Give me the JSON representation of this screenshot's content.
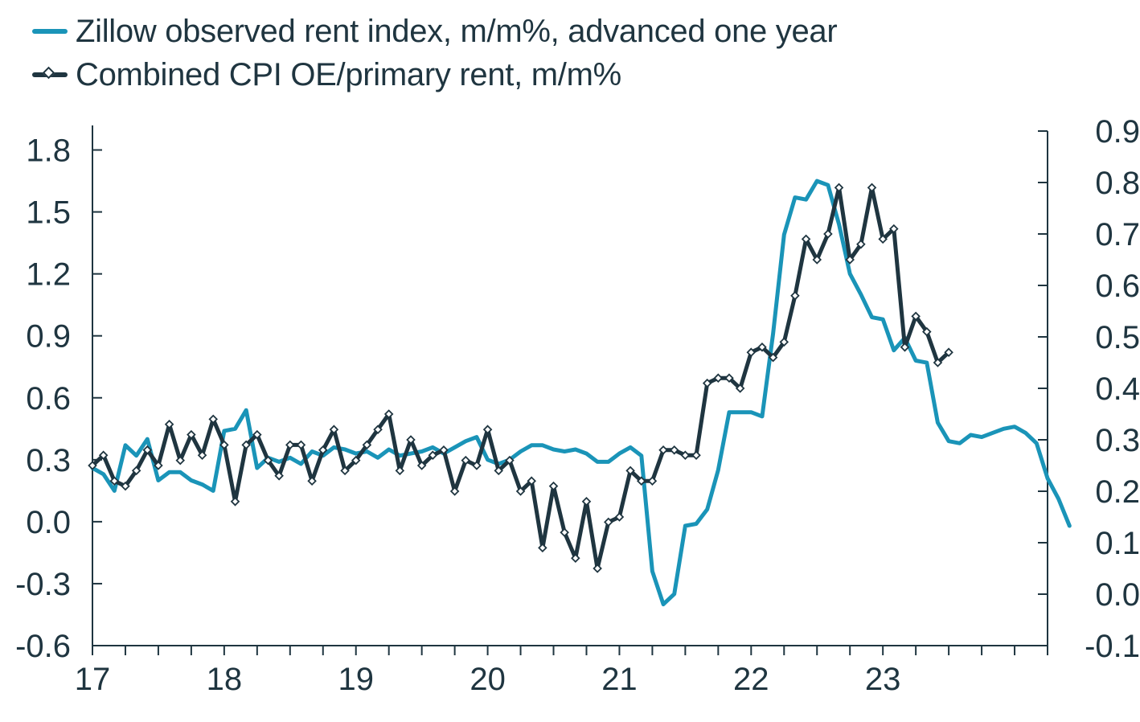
{
  "colors": {
    "zillow": "#1a94b8",
    "cpi": "#1f3540",
    "axis": "#1f3540"
  },
  "legend": {
    "zillow_label": "Zillow observed rent index, m/m%, advanced one year",
    "cpi_label": "Combined CPI OE/primary rent, m/m%"
  },
  "chart_data": {
    "type": "line",
    "x_ticks": [
      {
        "value": 2017,
        "label": "17"
      },
      {
        "value": 2018,
        "label": "18"
      },
      {
        "value": 2019,
        "label": "19"
      },
      {
        "value": 2020,
        "label": "20"
      },
      {
        "value": 2021,
        "label": "21"
      },
      {
        "value": 2022,
        "label": "22"
      },
      {
        "value": 2023,
        "label": "23"
      }
    ],
    "xlim": [
      2017,
      2024.25
    ],
    "y_left": {
      "lim": [
        -0.6,
        1.95
      ],
      "ticks": [
        "1.8",
        "1.5",
        "1.2",
        "0.9",
        "0.6",
        "0.3",
        "0.0",
        "-0.3",
        "-0.6"
      ]
    },
    "y_right": {
      "lim": [
        -0.1,
        0.9
      ],
      "ticks": [
        "0.9",
        "0.8",
        "0.7",
        "0.6",
        "0.5",
        "0.4",
        "0.3",
        "0.2",
        "0.1",
        "0.0",
        "-0.1"
      ]
    },
    "series": [
      {
        "name": "Zillow observed rent index, m/m%, advanced one year",
        "axis": "left",
        "x_start": 2017,
        "step_months": 1,
        "values": [
          0.26,
          0.23,
          0.15,
          0.37,
          0.32,
          0.4,
          0.2,
          0.24,
          0.24,
          0.2,
          0.18,
          0.15,
          0.44,
          0.45,
          0.54,
          0.26,
          0.31,
          0.29,
          0.31,
          0.28,
          0.34,
          0.32,
          0.36,
          0.35,
          0.33,
          0.34,
          0.31,
          0.35,
          0.32,
          0.33,
          0.34,
          0.36,
          0.33,
          0.36,
          0.39,
          0.41,
          0.3,
          0.28,
          0.3,
          0.34,
          0.37,
          0.37,
          0.35,
          0.34,
          0.35,
          0.33,
          0.29,
          0.29,
          0.33,
          0.36,
          0.32,
          -0.24,
          -0.4,
          -0.35,
          -0.02,
          -0.01,
          0.06,
          0.25,
          0.53,
          0.53,
          0.53,
          0.51,
          0.91,
          1.39,
          1.57,
          1.56,
          1.65,
          1.63,
          1.44,
          1.2,
          1.1,
          0.99,
          0.98,
          0.83,
          0.89,
          0.78,
          0.77,
          0.48,
          0.39,
          0.38,
          0.42,
          0.41,
          0.43,
          0.45,
          0.46,
          0.43,
          0.38,
          0.21,
          0.11,
          -0.02
        ]
      },
      {
        "name": "Combined CPI OE/primary rent, m/m%",
        "axis": "right",
        "x_start": 2017,
        "step_months": 1,
        "markers": true,
        "values": [
          0.25,
          0.27,
          0.22,
          0.21,
          0.24,
          0.28,
          0.25,
          0.33,
          0.26,
          0.31,
          0.27,
          0.34,
          0.29,
          0.18,
          0.29,
          0.31,
          0.26,
          0.23,
          0.29,
          0.29,
          0.22,
          0.28,
          0.32,
          0.24,
          0.26,
          0.29,
          0.32,
          0.35,
          0.24,
          0.3,
          0.25,
          0.27,
          0.28,
          0.2,
          0.26,
          0.25,
          0.32,
          0.24,
          0.26,
          0.2,
          0.22,
          0.09,
          0.21,
          0.12,
          0.07,
          0.18,
          0.05,
          0.14,
          0.15,
          0.24,
          0.22,
          0.22,
          0.28,
          0.28,
          0.27,
          0.27,
          0.41,
          0.42,
          0.42,
          0.4,
          0.47,
          0.48,
          0.46,
          0.49,
          0.58,
          0.69,
          0.65,
          0.7,
          0.79,
          0.65,
          0.68,
          0.79,
          0.69,
          0.71,
          0.48,
          0.54,
          0.51,
          0.45,
          0.47
        ]
      }
    ]
  }
}
